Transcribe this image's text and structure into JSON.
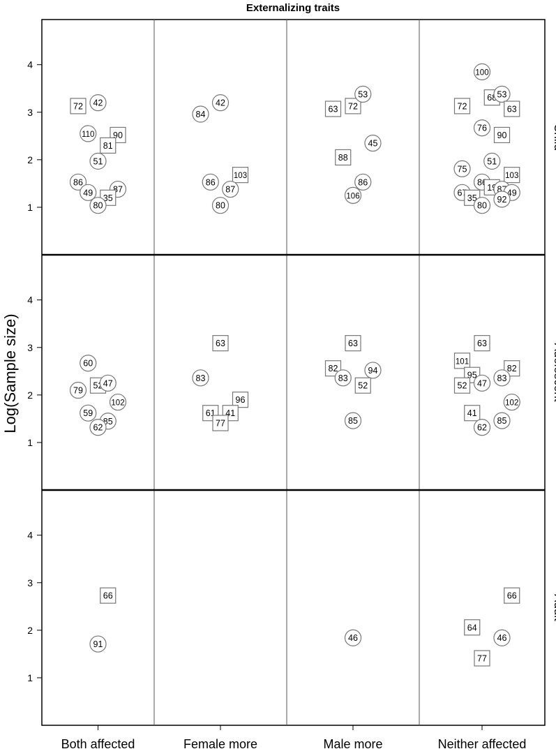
{
  "chart_data": {
    "type": "scatter",
    "title": "Externalizing traits",
    "ylabel": "Log(Sample size)",
    "xlabel": "",
    "ylim": [
      0,
      4.95
    ],
    "yticks": [
      1,
      2,
      3,
      4
    ],
    "grid": false,
    "columns": [
      "Both affected",
      "Female more",
      "Male more",
      "Neither affected"
    ],
    "rows": [
      "Child",
      "Adolescent",
      "Adult"
    ],
    "marker_shapes": [
      "circle",
      "square"
    ],
    "points": [
      {
        "row": "Child",
        "col": "Both affected",
        "x": -1.0,
        "y": 3.13,
        "label": "72",
        "shape": "square"
      },
      {
        "row": "Child",
        "col": "Both affected",
        "x": 0.0,
        "y": 3.2,
        "label": "42",
        "shape": "circle"
      },
      {
        "row": "Child",
        "col": "Both affected",
        "x": -0.5,
        "y": 2.55,
        "label": "110",
        "shape": "circle"
      },
      {
        "row": "Child",
        "col": "Both affected",
        "x": 1.0,
        "y": 2.52,
        "label": "90",
        "shape": "square"
      },
      {
        "row": "Child",
        "col": "Both affected",
        "x": 0.5,
        "y": 2.3,
        "label": "81",
        "shape": "square"
      },
      {
        "row": "Child",
        "col": "Both affected",
        "x": 0.0,
        "y": 1.97,
        "label": "51",
        "shape": "circle"
      },
      {
        "row": "Child",
        "col": "Both affected",
        "x": -1.0,
        "y": 1.53,
        "label": "86",
        "shape": "circle"
      },
      {
        "row": "Child",
        "col": "Both affected",
        "x": -0.5,
        "y": 1.31,
        "label": "49",
        "shape": "circle"
      },
      {
        "row": "Child",
        "col": "Both affected",
        "x": 1.0,
        "y": 1.38,
        "label": "87",
        "shape": "circle"
      },
      {
        "row": "Child",
        "col": "Both affected",
        "x": 0.5,
        "y": 1.2,
        "label": "35",
        "shape": "square"
      },
      {
        "row": "Child",
        "col": "Both affected",
        "x": 0.0,
        "y": 1.04,
        "label": "80",
        "shape": "circle"
      },
      {
        "row": "Child",
        "col": "Female more",
        "x": -1.0,
        "y": 2.96,
        "label": "84",
        "shape": "circle"
      },
      {
        "row": "Child",
        "col": "Female more",
        "x": 0.0,
        "y": 3.2,
        "label": "42",
        "shape": "circle"
      },
      {
        "row": "Child",
        "col": "Female more",
        "x": 1.0,
        "y": 1.68,
        "label": "103",
        "shape": "square"
      },
      {
        "row": "Child",
        "col": "Female more",
        "x": -0.5,
        "y": 1.53,
        "label": "86",
        "shape": "circle"
      },
      {
        "row": "Child",
        "col": "Female more",
        "x": 0.5,
        "y": 1.38,
        "label": "87",
        "shape": "circle"
      },
      {
        "row": "Child",
        "col": "Female more",
        "x": 0.0,
        "y": 1.04,
        "label": "80",
        "shape": "circle"
      },
      {
        "row": "Child",
        "col": "Male more",
        "x": -1.0,
        "y": 3.07,
        "label": "63",
        "shape": "square"
      },
      {
        "row": "Child",
        "col": "Male more",
        "x": 0.0,
        "y": 3.13,
        "label": "72",
        "shape": "square"
      },
      {
        "row": "Child",
        "col": "Male more",
        "x": 0.5,
        "y": 3.38,
        "label": "53",
        "shape": "circle"
      },
      {
        "row": "Child",
        "col": "Male more",
        "x": -0.5,
        "y": 2.05,
        "label": "88",
        "shape": "square"
      },
      {
        "row": "Child",
        "col": "Male more",
        "x": 1.0,
        "y": 2.35,
        "label": "45",
        "shape": "circle"
      },
      {
        "row": "Child",
        "col": "Male more",
        "x": 0.5,
        "y": 1.53,
        "label": "86",
        "shape": "circle"
      },
      {
        "row": "Child",
        "col": "Male more",
        "x": 0.0,
        "y": 1.25,
        "label": "106",
        "shape": "circle"
      },
      {
        "row": "Child",
        "col": "Neither affected",
        "x": 0.0,
        "y": 3.85,
        "label": "100",
        "shape": "circle"
      },
      {
        "row": "Child",
        "col": "Neither affected",
        "x": -1.0,
        "y": 3.13,
        "label": "72",
        "shape": "square"
      },
      {
        "row": "Child",
        "col": "Neither affected",
        "x": 0.5,
        "y": 3.31,
        "label": "68",
        "shape": "square"
      },
      {
        "row": "Child",
        "col": "Neither affected",
        "x": 1.0,
        "y": 3.38,
        "label": "53",
        "shape": "circle"
      },
      {
        "row": "Child",
        "col": "Neither affected",
        "x": 1.5,
        "y": 3.07,
        "label": "63",
        "shape": "square"
      },
      {
        "row": "Child",
        "col": "Neither affected",
        "x": 0.0,
        "y": 2.67,
        "label": "76",
        "shape": "circle"
      },
      {
        "row": "Child",
        "col": "Neither affected",
        "x": 1.0,
        "y": 2.52,
        "label": "90",
        "shape": "square"
      },
      {
        "row": "Child",
        "col": "Neither affected",
        "x": 0.5,
        "y": 1.97,
        "label": "51",
        "shape": "circle"
      },
      {
        "row": "Child",
        "col": "Neither affected",
        "x": -1.0,
        "y": 1.81,
        "label": "75",
        "shape": "circle"
      },
      {
        "row": "Child",
        "col": "Neither affected",
        "x": 1.5,
        "y": 1.68,
        "label": "103",
        "shape": "square"
      },
      {
        "row": "Child",
        "col": "Neither affected",
        "x": 0.0,
        "y": 1.53,
        "label": "86",
        "shape": "circle"
      },
      {
        "row": "Child",
        "col": "Neither affected",
        "x": 0.5,
        "y": 1.42,
        "label": "19",
        "shape": "square"
      },
      {
        "row": "Child",
        "col": "Neither affected",
        "x": 1.0,
        "y": 1.38,
        "label": "87",
        "shape": "circle"
      },
      {
        "row": "Child",
        "col": "Neither affected",
        "x": -1.0,
        "y": 1.31,
        "label": "67",
        "shape": "circle"
      },
      {
        "row": "Child",
        "col": "Neither affected",
        "x": -0.5,
        "y": 1.2,
        "label": "35",
        "shape": "square"
      },
      {
        "row": "Child",
        "col": "Neither affected",
        "x": 1.5,
        "y": 1.31,
        "label": "49",
        "shape": "circle"
      },
      {
        "row": "Child",
        "col": "Neither affected",
        "x": 1.0,
        "y": 1.17,
        "label": "92",
        "shape": "circle"
      },
      {
        "row": "Child",
        "col": "Neither affected",
        "x": 0.0,
        "y": 1.04,
        "label": "80",
        "shape": "circle"
      },
      {
        "row": "Adolescent",
        "col": "Both affected",
        "x": -0.5,
        "y": 2.67,
        "label": "60",
        "shape": "circle"
      },
      {
        "row": "Adolescent",
        "col": "Both affected",
        "x": -1.0,
        "y": 2.1,
        "label": "79",
        "shape": "circle"
      },
      {
        "row": "Adolescent",
        "col": "Both affected",
        "x": 0.0,
        "y": 2.2,
        "label": "52",
        "shape": "square"
      },
      {
        "row": "Adolescent",
        "col": "Both affected",
        "x": 0.5,
        "y": 2.25,
        "label": "47",
        "shape": "circle"
      },
      {
        "row": "Adolescent",
        "col": "Both affected",
        "x": 1.0,
        "y": 1.85,
        "label": "102",
        "shape": "circle"
      },
      {
        "row": "Adolescent",
        "col": "Both affected",
        "x": -0.5,
        "y": 1.62,
        "label": "59",
        "shape": "circle"
      },
      {
        "row": "Adolescent",
        "col": "Both affected",
        "x": 0.5,
        "y": 1.45,
        "label": "85",
        "shape": "circle"
      },
      {
        "row": "Adolescent",
        "col": "Both affected",
        "x": 0.0,
        "y": 1.32,
        "label": "62",
        "shape": "circle"
      },
      {
        "row": "Adolescent",
        "col": "Female more",
        "x": 0.0,
        "y": 3.09,
        "label": "63",
        "shape": "square"
      },
      {
        "row": "Adolescent",
        "col": "Female more",
        "x": -1.0,
        "y": 2.36,
        "label": "83",
        "shape": "circle"
      },
      {
        "row": "Adolescent",
        "col": "Female more",
        "x": 1.0,
        "y": 1.9,
        "label": "96",
        "shape": "square"
      },
      {
        "row": "Adolescent",
        "col": "Female more",
        "x": -0.5,
        "y": 1.62,
        "label": "61",
        "shape": "square"
      },
      {
        "row": "Adolescent",
        "col": "Female more",
        "x": 0.5,
        "y": 1.62,
        "label": "41",
        "shape": "square"
      },
      {
        "row": "Adolescent",
        "col": "Female more",
        "x": 0.0,
        "y": 1.41,
        "label": "77",
        "shape": "square"
      },
      {
        "row": "Adolescent",
        "col": "Male more",
        "x": 0.0,
        "y": 3.09,
        "label": "63",
        "shape": "square"
      },
      {
        "row": "Adolescent",
        "col": "Male more",
        "x": -1.0,
        "y": 2.56,
        "label": "82",
        "shape": "square"
      },
      {
        "row": "Adolescent",
        "col": "Male more",
        "x": -0.5,
        "y": 2.36,
        "label": "83",
        "shape": "circle"
      },
      {
        "row": "Adolescent",
        "col": "Male more",
        "x": 1.0,
        "y": 2.52,
        "label": "94",
        "shape": "circle"
      },
      {
        "row": "Adolescent",
        "col": "Male more",
        "x": 0.5,
        "y": 2.2,
        "label": "52",
        "shape": "square"
      },
      {
        "row": "Adolescent",
        "col": "Male more",
        "x": 0.0,
        "y": 1.46,
        "label": "85",
        "shape": "circle"
      },
      {
        "row": "Adolescent",
        "col": "Neither affected",
        "x": 0.0,
        "y": 3.09,
        "label": "63",
        "shape": "square"
      },
      {
        "row": "Adolescent",
        "col": "Neither affected",
        "x": -1.0,
        "y": 2.72,
        "label": "101",
        "shape": "square"
      },
      {
        "row": "Adolescent",
        "col": "Neither affected",
        "x": -0.5,
        "y": 2.42,
        "label": "95",
        "shape": "square"
      },
      {
        "row": "Adolescent",
        "col": "Neither affected",
        "x": 1.5,
        "y": 2.56,
        "label": "82",
        "shape": "square"
      },
      {
        "row": "Adolescent",
        "col": "Neither affected",
        "x": -1.0,
        "y": 2.2,
        "label": "52",
        "shape": "square"
      },
      {
        "row": "Adolescent",
        "col": "Neither affected",
        "x": 0.0,
        "y": 2.25,
        "label": "47",
        "shape": "circle"
      },
      {
        "row": "Adolescent",
        "col": "Neither affected",
        "x": 1.0,
        "y": 2.36,
        "label": "83",
        "shape": "circle"
      },
      {
        "row": "Adolescent",
        "col": "Neither affected",
        "x": 1.5,
        "y": 1.85,
        "label": "102",
        "shape": "circle"
      },
      {
        "row": "Adolescent",
        "col": "Neither affected",
        "x": -0.5,
        "y": 1.62,
        "label": "41",
        "shape": "square"
      },
      {
        "row": "Adolescent",
        "col": "Neither affected",
        "x": 1.0,
        "y": 1.46,
        "label": "85",
        "shape": "circle"
      },
      {
        "row": "Adolescent",
        "col": "Neither affected",
        "x": 0.0,
        "y": 1.32,
        "label": "62",
        "shape": "circle"
      },
      {
        "row": "Adult",
        "col": "Both affected",
        "x": 0.5,
        "y": 2.73,
        "label": "66",
        "shape": "square"
      },
      {
        "row": "Adult",
        "col": "Both affected",
        "x": 0.0,
        "y": 1.71,
        "label": "91",
        "shape": "circle"
      },
      {
        "row": "Adult",
        "col": "Male more",
        "x": 0.0,
        "y": 1.84,
        "label": "46",
        "shape": "circle"
      },
      {
        "row": "Adult",
        "col": "Neither affected",
        "x": 1.5,
        "y": 2.73,
        "label": "66",
        "shape": "square"
      },
      {
        "row": "Adult",
        "col": "Neither affected",
        "x": -0.5,
        "y": 2.06,
        "label": "64",
        "shape": "square"
      },
      {
        "row": "Adult",
        "col": "Neither affected",
        "x": 1.0,
        "y": 1.84,
        "label": "46",
        "shape": "circle"
      },
      {
        "row": "Adult",
        "col": "Neither affected",
        "x": 0.0,
        "y": 1.41,
        "label": "77",
        "shape": "square"
      }
    ]
  }
}
